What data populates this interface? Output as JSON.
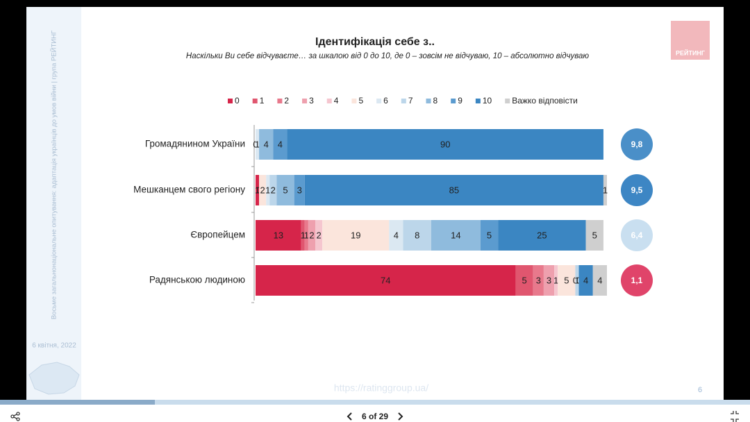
{
  "slide": {
    "sidebar_text": "Восьме загальнонаціональне опитування: адаптація українців до умов війни | група РЕЙТИНГ",
    "date": "6 квітня, 2022",
    "logo": "РЕЙТИНГ",
    "footer_url": "https://ratinggroup.ua/",
    "page_number": "6"
  },
  "viewer": {
    "page_label": "6 of 29"
  },
  "chart_data": {
    "type": "stacked-bar-horizontal",
    "title": "Ідентифікація себе з..",
    "subtitle": "Наскільки Ви себе відчуваєте… за шкалою від 0 до 10, де 0 – зовсім не відчуваю, 10 – абсолютно відчуваю",
    "categories": [
      "Громадянином України",
      "Мешканцем свого регіону",
      "Європейцем",
      "Радянською людиною"
    ],
    "xlim": [
      0,
      100
    ],
    "series": [
      {
        "name": "0",
        "color": "#d6254a",
        "values": [
          0,
          1,
          13,
          74
        ]
      },
      {
        "name": "1",
        "color": "#e0566f",
        "values": [
          0,
          0,
          1,
          5
        ]
      },
      {
        "name": "2",
        "color": "#e8798c",
        "values": [
          null,
          null,
          1,
          3
        ]
      },
      {
        "name": "3",
        "color": "#eea0ae",
        "values": [
          null,
          null,
          2,
          3
        ]
      },
      {
        "name": "4",
        "color": "#f5c6cf",
        "values": [
          null,
          null,
          2,
          1
        ]
      },
      {
        "name": "5",
        "color": "#fbe5dc",
        "values": [
          null,
          2,
          19,
          5
        ]
      },
      {
        "name": "6",
        "color": "#dbe8f2",
        "values": [
          1,
          1,
          4,
          0
        ]
      },
      {
        "name": "7",
        "color": "#bcd6ea",
        "values": [
          null,
          2,
          8,
          1
        ]
      },
      {
        "name": "8",
        "color": "#8fbbdd",
        "values": [
          4,
          5,
          14,
          0
        ]
      },
      {
        "name": "9",
        "color": "#5b9bcf",
        "values": [
          4,
          3,
          5,
          null
        ]
      },
      {
        "name": "10",
        "color": "#3b86c2",
        "values": [
          90,
          85,
          25,
          4
        ]
      },
      {
        "name": "Важко відповісти",
        "color": "#cfcfcf",
        "values": [
          null,
          1,
          5,
          4
        ]
      }
    ],
    "means": {
      "values": [
        9.8,
        9.5,
        6.4,
        1.1
      ],
      "value_labels": [
        "9,8",
        "9,5",
        "6,4",
        "1,1"
      ],
      "colors": [
        "#4a8fc8",
        "#3d86c4",
        "#c9dff0",
        "#e0446a"
      ]
    }
  }
}
